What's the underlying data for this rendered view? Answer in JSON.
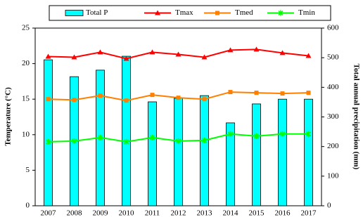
{
  "chart_data": {
    "type": "bar-line",
    "y_label": "Temperature (°C)",
    "y2_label": "Total annual precipitation (mm)",
    "categories": [
      "2007",
      "2008",
      "2009",
      "2010",
      "2011",
      "2012",
      "2013",
      "2014",
      "2015",
      "2016",
      "2017"
    ],
    "series": [
      {
        "name": "Total P",
        "type": "bar",
        "axis": "y2",
        "color": "#00ffff",
        "values": [
          493,
          436,
          458,
          505,
          351,
          363,
          372,
          280,
          344,
          360,
          360
        ]
      },
      {
        "name": "Tmax",
        "type": "line",
        "marker": "triangle",
        "color": "#ff0000",
        "values": [
          21.0,
          20.9,
          21.6,
          20.7,
          21.6,
          21.3,
          20.9,
          21.9,
          22.0,
          21.5,
          21.1
        ]
      },
      {
        "name": "Tmed",
        "type": "line",
        "marker": "square",
        "color": "#ff7f00",
        "values": [
          15.0,
          14.9,
          15.5,
          14.8,
          15.6,
          15.2,
          15.0,
          16.0,
          15.9,
          15.8,
          15.9
        ]
      },
      {
        "name": "Tmin",
        "type": "line",
        "marker": "cross",
        "color": "#00ff00",
        "values": [
          9.0,
          9.1,
          9.6,
          9.0,
          9.6,
          9.1,
          9.2,
          10.1,
          9.8,
          10.1,
          10.1
        ]
      }
    ],
    "ylim": [
      0,
      25
    ],
    "yticks": [
      0,
      5,
      10,
      15,
      20,
      25
    ],
    "y2lim": [
      0,
      600
    ],
    "y2ticks": [
      0,
      100,
      200,
      300,
      400,
      500,
      600
    ]
  }
}
